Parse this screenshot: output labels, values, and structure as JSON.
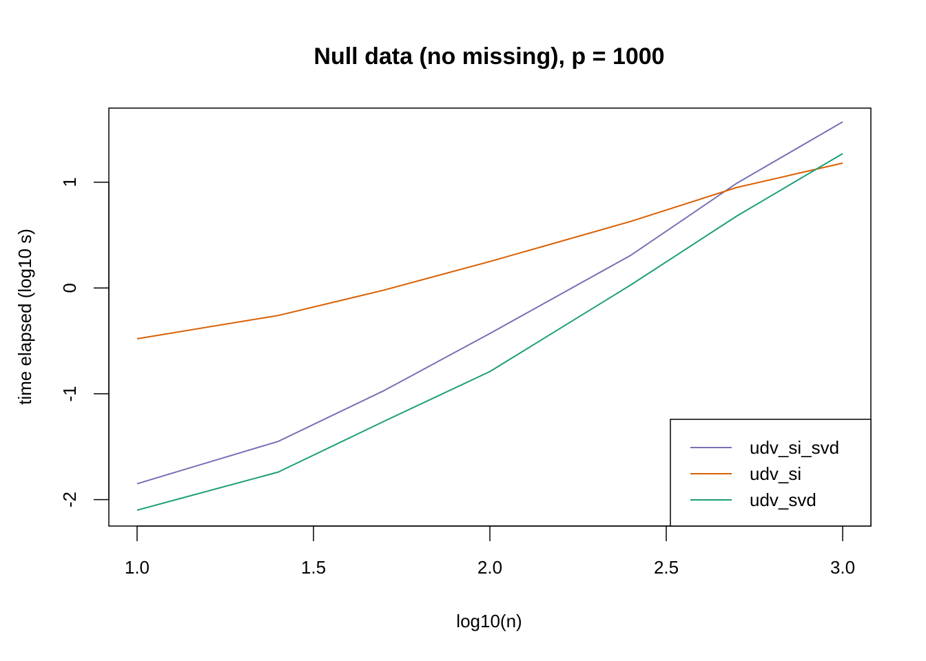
{
  "chart_data": {
    "type": "line",
    "title": "Null data (no missing), p = 1000",
    "xlabel": "log10(n)",
    "ylabel": "time elapsed (log10 s)",
    "xlim": [
      0.92,
      3.08
    ],
    "ylim": [
      -2.25,
      1.7
    ],
    "xticks": [
      1.0,
      1.5,
      2.0,
      2.5,
      3.0
    ],
    "xtick_labels": [
      "1.0",
      "1.5",
      "2.0",
      "2.5",
      "3.0"
    ],
    "yticks": [
      -2,
      -1,
      0,
      1
    ],
    "ytick_labels": [
      "-2",
      "-1",
      "0",
      "1"
    ],
    "grid": false,
    "legend_position": "bottom-right",
    "series": [
      {
        "name": "udv_si_svd",
        "color": "#7570b3",
        "x": [
          1.0,
          1.4,
          1.7,
          2.0,
          2.4,
          2.7,
          3.0
        ],
        "y": [
          -1.85,
          -1.45,
          -0.97,
          -0.43,
          0.31,
          0.99,
          1.57
        ]
      },
      {
        "name": "udv_si",
        "color": "#d95f02",
        "x": [
          1.0,
          1.4,
          1.7,
          2.0,
          2.4,
          2.7,
          3.0
        ],
        "y": [
          -0.48,
          -0.26,
          -0.02,
          0.25,
          0.63,
          0.95,
          1.18
        ]
      },
      {
        "name": "udv_svd",
        "color": "#1b9e77",
        "x": [
          1.0,
          1.4,
          1.7,
          2.0,
          2.4,
          2.7,
          3.0
        ],
        "y": [
          -2.1,
          -1.74,
          -1.26,
          -0.79,
          0.03,
          0.68,
          1.27
        ]
      }
    ]
  }
}
